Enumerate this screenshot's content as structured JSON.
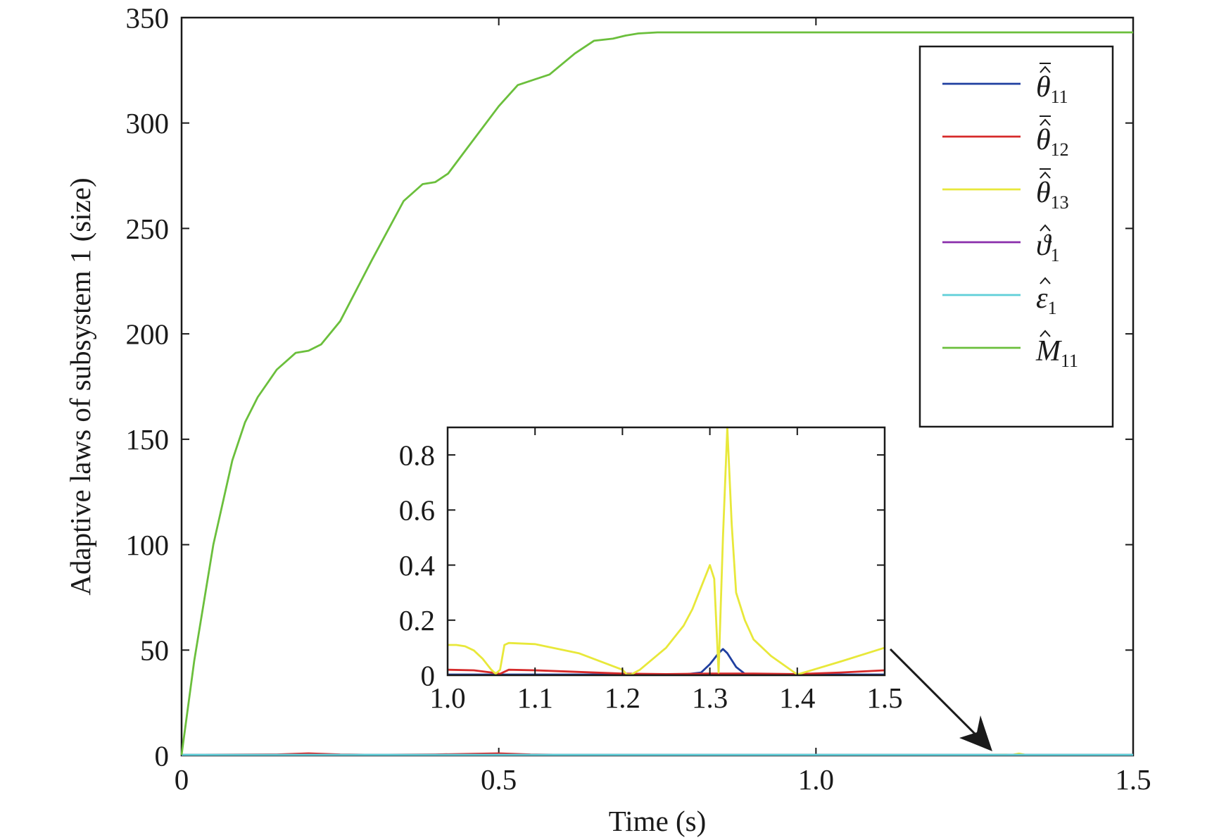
{
  "chart_data": [
    {
      "type": "line",
      "xlabel": "Time (s)",
      "ylabel": "Adaptive laws of subsystem 1 (size)",
      "xlim": [
        0,
        1.5
      ],
      "ylim": [
        0,
        350
      ],
      "xticks": [
        0,
        0.5,
        1.0,
        1.5
      ],
      "xtick_labels": [
        "0",
        "0.5",
        "1.0",
        "1.5"
      ],
      "yticks": [
        0,
        50,
        100,
        150,
        200,
        250,
        300,
        350
      ],
      "ytick_labels": [
        "0",
        "50",
        "100",
        "150",
        "200",
        "250",
        "300",
        "350"
      ],
      "legend_position": "top-right",
      "series": [
        {
          "name": "θ̂̄11",
          "symbol": "θ",
          "subscript": "11",
          "accent": "hat-bar",
          "color": "#1f3fa0",
          "x": [
            0,
            0.2,
            0.4,
            0.6,
            0.8,
            1.0,
            1.25,
            1.3,
            1.31,
            1.32,
            1.35,
            1.5
          ],
          "y": [
            0,
            0,
            0,
            0,
            0,
            0,
            0,
            0.05,
            0.1,
            0.05,
            0,
            0
          ]
        },
        {
          "name": "θ̂̄12",
          "symbol": "θ",
          "subscript": "12",
          "accent": "hat-bar",
          "color": "#d62a2a",
          "x": [
            0,
            0.15,
            0.2,
            0.25,
            0.3,
            0.4,
            0.5,
            0.55,
            0.6,
            0.8,
            1.0,
            1.25,
            1.5
          ],
          "y": [
            0,
            0.5,
            1,
            0.5,
            0,
            0.5,
            1,
            0.5,
            0.3,
            0.1,
            0.02,
            0.01,
            0.02
          ]
        },
        {
          "name": "θ̂̄13",
          "symbol": "θ",
          "subscript": "13",
          "accent": "hat-bar",
          "color": "#e8e83a",
          "x": [
            0,
            0.5,
            1.0,
            1.05,
            1.07,
            1.2,
            1.25,
            1.3,
            1.31,
            1.32,
            1.33,
            1.4,
            1.5
          ],
          "y": [
            0,
            0,
            0.11,
            0,
            0.12,
            0,
            0.1,
            0.4,
            0.01,
            0.9,
            0.3,
            0,
            0.1
          ]
        },
        {
          "name": "ϑ̂1",
          "symbol": "ϑ",
          "subscript": "1",
          "accent": "hat",
          "color": "#8a2eab",
          "x": [
            0,
            1.5
          ],
          "y": [
            0,
            0
          ]
        },
        {
          "name": "ε̂1",
          "symbol": "ε",
          "subscript": "1",
          "accent": "hat",
          "color": "#5ecfd8",
          "x": [
            0,
            1.5
          ],
          "y": [
            0,
            0
          ]
        },
        {
          "name": "M̂11",
          "symbol": "M",
          "subscript": "11",
          "accent": "hat",
          "color": "#6bbf3c",
          "x": [
            0,
            0.02,
            0.05,
            0.08,
            0.1,
            0.12,
            0.15,
            0.18,
            0.2,
            0.22,
            0.25,
            0.3,
            0.35,
            0.38,
            0.4,
            0.42,
            0.45,
            0.5,
            0.53,
            0.55,
            0.58,
            0.62,
            0.65,
            0.68,
            0.7,
            0.72,
            0.75,
            0.8,
            1.0,
            1.2,
            1.5
          ],
          "y": [
            0,
            45,
            100,
            140,
            158,
            170,
            183,
            191,
            192,
            195,
            206,
            235,
            263,
            271,
            272,
            276,
            288,
            308,
            318,
            320,
            323,
            333,
            339,
            340,
            341.5,
            342.5,
            343,
            343,
            343,
            343,
            343
          ]
        }
      ]
    },
    {
      "type": "line",
      "xlim": [
        1.0,
        1.5
      ],
      "ylim": [
        0,
        0.9
      ],
      "xticks": [
        1.0,
        1.1,
        1.2,
        1.3,
        1.4,
        1.5
      ],
      "xtick_labels": [
        "1.0",
        "1.1",
        "1.2",
        "1.3",
        "1.4",
        "1.5"
      ],
      "yticks": [
        0,
        0.2,
        0.4,
        0.6,
        0.8
      ],
      "ytick_labels": [
        "0",
        "0.2",
        "0.4",
        "0.6",
        "0.8"
      ],
      "series": [
        {
          "name": "θ̂̄11",
          "color": "#1f3fa0",
          "x": [
            1.0,
            1.27,
            1.29,
            1.3,
            1.31,
            1.315,
            1.32,
            1.33,
            1.34,
            1.36,
            1.5
          ],
          "y": [
            0,
            0.001,
            0.01,
            0.04,
            0.08,
            0.095,
            0.08,
            0.03,
            0.005,
            0,
            0
          ]
        },
        {
          "name": "θ̂̄12",
          "color": "#d62a2a",
          "x": [
            1.0,
            1.03,
            1.05,
            1.06,
            1.07,
            1.1,
            1.15,
            1.2,
            1.25,
            1.3,
            1.35,
            1.4,
            1.45,
            1.5
          ],
          "y": [
            0.02,
            0.018,
            0.01,
            0.005,
            0.02,
            0.018,
            0.012,
            0.006,
            0.004,
            0.006,
            0.006,
            0.004,
            0.01,
            0.018
          ]
        },
        {
          "name": "θ̂̄13",
          "color": "#e8e83a",
          "x": [
            1.0,
            1.01,
            1.02,
            1.03,
            1.04,
            1.05,
            1.055,
            1.06,
            1.065,
            1.07,
            1.1,
            1.15,
            1.2,
            1.205,
            1.21,
            1.22,
            1.25,
            1.27,
            1.28,
            1.29,
            1.3,
            1.305,
            1.31,
            1.315,
            1.32,
            1.325,
            1.33,
            1.34,
            1.35,
            1.37,
            1.4,
            1.45,
            1.5
          ],
          "y": [
            0.11,
            0.11,
            0.105,
            0.09,
            0.06,
            0.02,
            0.005,
            0.02,
            0.11,
            0.117,
            0.113,
            0.08,
            0.02,
            0.003,
            0.002,
            0.02,
            0.1,
            0.18,
            0.24,
            0.32,
            0.4,
            0.35,
            0.01,
            0.5,
            0.9,
            0.55,
            0.3,
            0.2,
            0.13,
            0.07,
            0.002,
            0.05,
            0.1
          ]
        }
      ]
    }
  ]
}
